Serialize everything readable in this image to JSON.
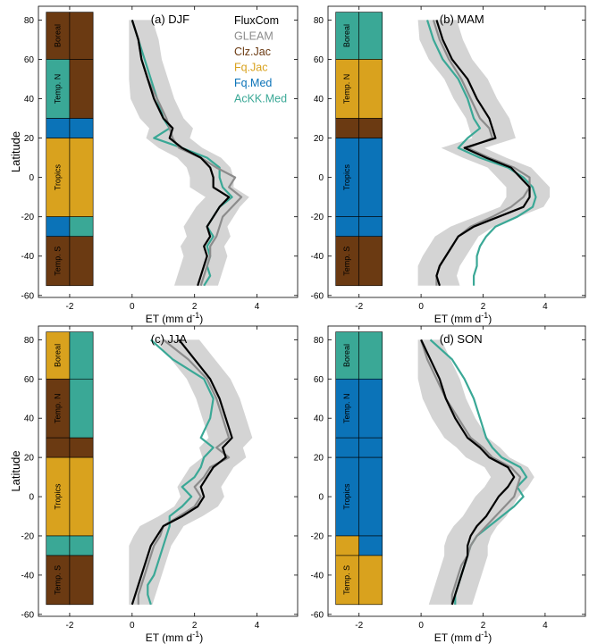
{
  "chart_data": [
    {
      "type": "line",
      "panel": "(a)  DJF",
      "xlabel": "ET (mm d",
      "xlabel_sup": "-1",
      "xlabel_end": ")",
      "ylabel": "Latitude",
      "xlim": [
        -3,
        5.3
      ],
      "ylim": [
        -61,
        87
      ],
      "xticks": [
        "-2",
        "0",
        "2",
        "4"
      ],
      "yticks": [
        "-60",
        "-40",
        "-20",
        "0",
        "20",
        "40",
        "60",
        "80"
      ],
      "legend": {
        "position": "top-right",
        "entries": [
          {
            "name": "FluxCom",
            "color": "#000000"
          },
          {
            "name": "GLEAM",
            "color": "#8c8c8c"
          },
          {
            "name": "Clz.Jac",
            "color": "#6b3a12"
          },
          {
            "name": "Fq.Jac",
            "color": "#d9a21e"
          },
          {
            "name": "Fq.Med",
            "color": "#0b73b8"
          },
          {
            "name": "AcKK.Med",
            "color": "#3aa896"
          }
        ]
      },
      "zones": [
        {
          "name": "Boreal",
          "lat": [
            60,
            84
          ],
          "left": "#6b3a12",
          "right": "#6b3a12"
        },
        {
          "name": "Temp. N",
          "lat": [
            30,
            60
          ],
          "left": "#3aa896",
          "right": "#6b3a12"
        },
        {
          "name": "",
          "lat": [
            20,
            30
          ],
          "left": "#0b73b8",
          "right": "#0b73b8"
        },
        {
          "name": "Tropics",
          "lat": [
            -20,
            20
          ],
          "left": "#d9a21e",
          "right": "#d9a21e"
        },
        {
          "name": "",
          "lat": [
            -30,
            -20
          ],
          "left": "#0b73b8",
          "right": "#3aa896"
        },
        {
          "name": "Temp. S",
          "lat": [
            -55,
            -30
          ],
          "left": "#6b3a12",
          "right": "#6b3a12"
        }
      ],
      "lat": [
        80,
        70,
        60,
        50,
        40,
        30,
        25,
        20,
        15,
        10,
        5,
        0,
        -5,
        -10,
        -15,
        -20,
        -25,
        -30,
        -35,
        -40,
        -45,
        -50,
        -55
      ],
      "series": [
        {
          "name": "FluxCom",
          "values": [
            0,
            0.2,
            0.3,
            0.5,
            0.7,
            1.0,
            1.3,
            1.2,
            1.6,
            2.2,
            2.5,
            2.6,
            2.6,
            3.1,
            2.8,
            2.6,
            2.4,
            2.5,
            2.3,
            2.4,
            2.3,
            2.2,
            2.1
          ]
        },
        {
          "name": "GLEAM",
          "values": [
            0,
            0.2,
            0.3,
            0.5,
            0.8,
            1.1,
            1.2,
            1.3,
            1.5,
            2.2,
            2.7,
            3.3,
            3.1,
            3.5,
            3.2,
            2.9,
            2.8,
            2.7,
            2.5,
            2.5,
            2.4,
            2.3,
            2.2
          ]
        },
        {
          "name": "AcKK.Med",
          "values": [
            0,
            0.2,
            0.4,
            0.6,
            0.8,
            1.0,
            1.2,
            0.7,
            1.6,
            2.4,
            2.8,
            2.8,
            2.9,
            3.2,
            2.8,
            2.6,
            2.4,
            2.6,
            2.4,
            2.5,
            2.4,
            2.5,
            2.3
          ]
        }
      ]
    },
    {
      "type": "line",
      "panel": "(b)  MAM",
      "xlabel": "ET (mm d",
      "xlabel_sup": "-1",
      "xlabel_end": ")",
      "ylabel": "",
      "xlim": [
        -3,
        5.3
      ],
      "ylim": [
        -61,
        87
      ],
      "xticks": [
        "-2",
        "0",
        "2",
        "4"
      ],
      "yticks": [
        "-60",
        "-40",
        "-20",
        "0",
        "20",
        "40",
        "60",
        "80"
      ],
      "zones": [
        {
          "name": "Boreal",
          "lat": [
            60,
            84
          ],
          "left": "#3aa896",
          "right": "#3aa896"
        },
        {
          "name": "Temp. N",
          "lat": [
            30,
            60
          ],
          "left": "#d9a21e",
          "right": "#d9a21e"
        },
        {
          "name": "",
          "lat": [
            20,
            30
          ],
          "left": "#6b3a12",
          "right": "#6b3a12"
        },
        {
          "name": "Tropics",
          "lat": [
            -20,
            20
          ],
          "left": "#0b73b8",
          "right": "#0b73b8"
        },
        {
          "name": "",
          "lat": [
            -30,
            -20
          ],
          "left": "#0b73b8",
          "right": "#0b73b8"
        },
        {
          "name": "Temp. S",
          "lat": [
            -55,
            -30
          ],
          "left": "#6b3a12",
          "right": "#6b3a12"
        }
      ],
      "lat": [
        80,
        70,
        60,
        50,
        40,
        30,
        25,
        20,
        15,
        10,
        5,
        0,
        -5,
        -10,
        -15,
        -20,
        -25,
        -30,
        -35,
        -40,
        -45,
        -50,
        -55
      ],
      "series": [
        {
          "name": "FluxCom",
          "values": [
            0.5,
            0.7,
            1.0,
            1.5,
            1.8,
            2.2,
            2.3,
            2.4,
            1.4,
            2.1,
            2.9,
            3.2,
            3.5,
            3.5,
            3.3,
            2.5,
            1.7,
            1.2,
            1.0,
            0.8,
            0.6,
            0.5,
            0.6
          ]
        },
        {
          "name": "GLEAM",
          "values": [
            0.4,
            0.6,
            0.9,
            1.3,
            1.6,
            1.9,
            2.2,
            2.3,
            1.5,
            2.2,
            3.0,
            3.5,
            3.5,
            3.3,
            2.9,
            2.3,
            1.6,
            1.2,
            1.0,
            0.8,
            0.6,
            0.5,
            0.5
          ]
        },
        {
          "name": "AcKK.Med",
          "values": [
            0.2,
            0.4,
            0.7,
            1.2,
            1.5,
            1.7,
            1.9,
            1.5,
            1.2,
            1.9,
            2.8,
            3.3,
            3.6,
            3.7,
            3.6,
            3.1,
            2.4,
            2.1,
            1.9,
            1.8,
            1.8,
            1.7,
            1.7
          ]
        }
      ]
    },
    {
      "type": "line",
      "panel": "(c)  JJA",
      "xlabel": "ET (mm d",
      "xlabel_sup": "-1",
      "xlabel_end": ")",
      "ylabel": "Latitude",
      "xlim": [
        -3,
        5.3
      ],
      "ylim": [
        -61,
        87
      ],
      "xticks": [
        "-2",
        "0",
        "2",
        "4"
      ],
      "yticks": [
        "-60",
        "-40",
        "-20",
        "0",
        "20",
        "40",
        "60",
        "80"
      ],
      "zones": [
        {
          "name": "Boreal",
          "lat": [
            60,
            84
          ],
          "left": "#d9a21e",
          "right": "#3aa896"
        },
        {
          "name": "Temp. N",
          "lat": [
            30,
            60
          ],
          "left": "#6b3a12",
          "right": "#3aa896"
        },
        {
          "name": "",
          "lat": [
            20,
            30
          ],
          "left": "#6b3a12",
          "right": "#6b3a12"
        },
        {
          "name": "Tropics",
          "lat": [
            -20,
            20
          ],
          "left": "#d9a21e",
          "right": "#d9a21e"
        },
        {
          "name": "",
          "lat": [
            -30,
            -20
          ],
          "left": "#3aa896",
          "right": "#3aa896"
        },
        {
          "name": "Temp. S",
          "lat": [
            -55,
            -30
          ],
          "left": "#6b3a12",
          "right": "#6b3a12"
        }
      ],
      "lat": [
        80,
        70,
        60,
        50,
        40,
        30,
        25,
        20,
        15,
        10,
        5,
        0,
        -5,
        -10,
        -15,
        -20,
        -25,
        -30,
        -35,
        -40,
        -45,
        -50,
        -55
      ],
      "series": [
        {
          "name": "FluxCom",
          "values": [
            1.5,
            2.0,
            2.5,
            2.8,
            3.0,
            3.2,
            2.9,
            3.0,
            2.6,
            2.4,
            2.2,
            2.3,
            2.1,
            1.6,
            1.0,
            0.8,
            0.6,
            0.5,
            0.4,
            0.3,
            0.2,
            0.1,
            0.0
          ]
        },
        {
          "name": "GLEAM",
          "values": [
            1.0,
            1.8,
            2.4,
            2.7,
            2.9,
            3.1,
            2.7,
            3.1,
            2.5,
            2.3,
            2.0,
            2.2,
            2.0,
            1.5,
            1.0,
            0.9,
            0.7,
            0.6,
            0.5,
            0.4,
            0.3,
            0.2,
            0.2
          ]
        },
        {
          "name": "AcKK.Med",
          "values": [
            0.6,
            1.3,
            2.3,
            2.6,
            2.5,
            2.2,
            2.6,
            2.3,
            2.2,
            2.0,
            1.6,
            1.9,
            1.6,
            1.2,
            1.2,
            1.1,
            1.0,
            0.9,
            0.8,
            0.7,
            0.5,
            0.5,
            0.6
          ]
        }
      ]
    },
    {
      "type": "line",
      "panel": "(d)  SON",
      "xlabel": "ET (mm d",
      "xlabel_sup": "-1",
      "xlabel_end": ")",
      "ylabel": "",
      "xlim": [
        -3,
        5.3
      ],
      "ylim": [
        -61,
        87
      ],
      "xticks": [
        "-2",
        "0",
        "2",
        "4"
      ],
      "yticks": [
        "-60",
        "-40",
        "-20",
        "0",
        "20",
        "40",
        "60",
        "80"
      ],
      "zones": [
        {
          "name": "Boreal",
          "lat": [
            60,
            84
          ],
          "left": "#3aa896",
          "right": "#3aa896"
        },
        {
          "name": "Temp. N",
          "lat": [
            30,
            60
          ],
          "left": "#0b73b8",
          "right": "#0b73b8"
        },
        {
          "name": "",
          "lat": [
            20,
            30
          ],
          "left": "#0b73b8",
          "right": "#0b73b8"
        },
        {
          "name": "Tropics",
          "lat": [
            -20,
            20
          ],
          "left": "#0b73b8",
          "right": "#0b73b8"
        },
        {
          "name": "",
          "lat": [
            -30,
            -20
          ],
          "left": "#d9a21e",
          "right": "#0b73b8"
        },
        {
          "name": "Temp. S",
          "lat": [
            -55,
            -30
          ],
          "left": "#d9a21e",
          "right": "#d9a21e"
        }
      ],
      "lat": [
        80,
        70,
        60,
        50,
        40,
        30,
        25,
        20,
        15,
        10,
        5,
        0,
        -5,
        -10,
        -15,
        -20,
        -25,
        -30,
        -35,
        -40,
        -45,
        -50,
        -55
      ],
      "series": [
        {
          "name": "FluxCom",
          "values": [
            0.0,
            0.3,
            0.6,
            0.8,
            1.1,
            1.5,
            1.9,
            2.2,
            2.8,
            3.0,
            2.8,
            2.5,
            2.3,
            2.1,
            1.8,
            1.6,
            1.5,
            1.5,
            1.4,
            1.3,
            1.2,
            1.1,
            1.0
          ]
        },
        {
          "name": "GLEAM",
          "values": [
            0.0,
            0.2,
            0.5,
            0.8,
            1.2,
            1.6,
            2.0,
            2.3,
            2.9,
            3.2,
            3.1,
            3.0,
            2.7,
            2.4,
            2.1,
            1.8,
            1.6,
            1.5,
            1.3,
            1.2,
            1.1,
            1.0,
            1.0
          ]
        },
        {
          "name": "AcKK.Med",
          "values": [
            0.3,
            1.0,
            1.4,
            1.7,
            1.9,
            2.1,
            2.3,
            2.6,
            3.2,
            3.4,
            3.1,
            3.3,
            3.0,
            2.6,
            2.2,
            1.8,
            1.6,
            1.5,
            1.4,
            1.3,
            1.2,
            1.1,
            1.1
          ]
        }
      ]
    }
  ]
}
